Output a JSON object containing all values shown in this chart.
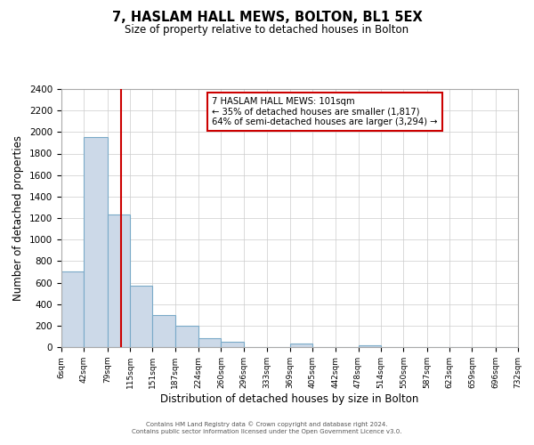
{
  "title": "7, HASLAM HALL MEWS, BOLTON, BL1 5EX",
  "subtitle": "Size of property relative to detached houses in Bolton",
  "xlabel": "Distribution of detached houses by size in Bolton",
  "ylabel": "Number of detached properties",
  "bin_edges": [
    6,
    42,
    79,
    115,
    151,
    187,
    224,
    260,
    296,
    333,
    369,
    405,
    442,
    478,
    514,
    550,
    587,
    623,
    659,
    696,
    732
  ],
  "bin_counts": [
    700,
    1950,
    1230,
    575,
    300,
    200,
    80,
    50,
    0,
    0,
    35,
    0,
    0,
    15,
    0,
    0,
    0,
    0,
    0,
    0
  ],
  "property_size": 101,
  "property_label": "7 HASLAM HALL MEWS: 101sqm",
  "annotation_line1": "← 35% of detached houses are smaller (1,817)",
  "annotation_line2": "64% of semi-detached houses are larger (3,294) →",
  "bar_fill_color": "#ccd9e8",
  "bar_edge_color": "#7aaac8",
  "vline_color": "#cc0000",
  "annotation_box_edge_color": "#cc0000",
  "annotation_box_fill": "#ffffff",
  "grid_color": "#cccccc",
  "background_color": "#ffffff",
  "ylim": [
    0,
    2400
  ],
  "tick_labels": [
    "6sqm",
    "42sqm",
    "79sqm",
    "115sqm",
    "151sqm",
    "187sqm",
    "224sqm",
    "260sqm",
    "296sqm",
    "333sqm",
    "369sqm",
    "405sqm",
    "442sqm",
    "478sqm",
    "514sqm",
    "550sqm",
    "587sqm",
    "623sqm",
    "659sqm",
    "696sqm",
    "732sqm"
  ],
  "footer_line1": "Contains HM Land Registry data © Crown copyright and database right 2024.",
  "footer_line2": "Contains public sector information licensed under the Open Government Licence v3.0."
}
